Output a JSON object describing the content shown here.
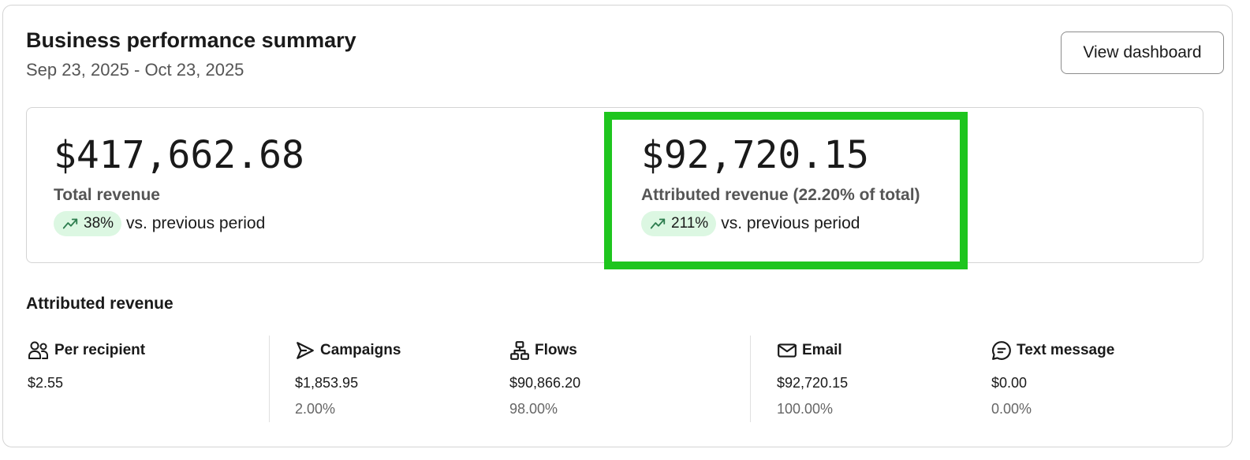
{
  "header": {
    "title": "Business performance summary",
    "date_range": "Sep 23, 2025 - Oct 23, 2025",
    "view_dashboard_label": "View dashboard"
  },
  "metrics": {
    "total": {
      "value": "$417,662.68",
      "label": "Total revenue",
      "change": "38%",
      "change_icon": "trend-up-icon",
      "vs_text": "vs. previous period"
    },
    "attributed": {
      "value": "$92,720.15",
      "label": "Attributed revenue (22.20% of total)",
      "change": "211%",
      "change_icon": "trend-up-icon",
      "vs_text": "vs. previous period"
    }
  },
  "attributed_section": {
    "title": "Attributed revenue",
    "stats": [
      {
        "icon": "people-icon",
        "label": "Per recipient",
        "value": "$2.55",
        "pct": ""
      },
      {
        "icon": "send-icon",
        "label": "Campaigns",
        "value": "$1,853.95",
        "pct": "2.00%"
      },
      {
        "icon": "flow-icon",
        "label": "Flows",
        "value": "$90,866.20",
        "pct": "98.00%"
      },
      {
        "icon": "email-icon",
        "label": "Email",
        "value": "$92,720.15",
        "pct": "100.00%"
      },
      {
        "icon": "text-message-icon",
        "label": "Text message",
        "value": "$0.00",
        "pct": "0.00%"
      }
    ]
  },
  "colors": {
    "highlight": "#1ec51e",
    "pill_bg": "#dcf7e2",
    "trend_icon": "#2e7d4f"
  }
}
